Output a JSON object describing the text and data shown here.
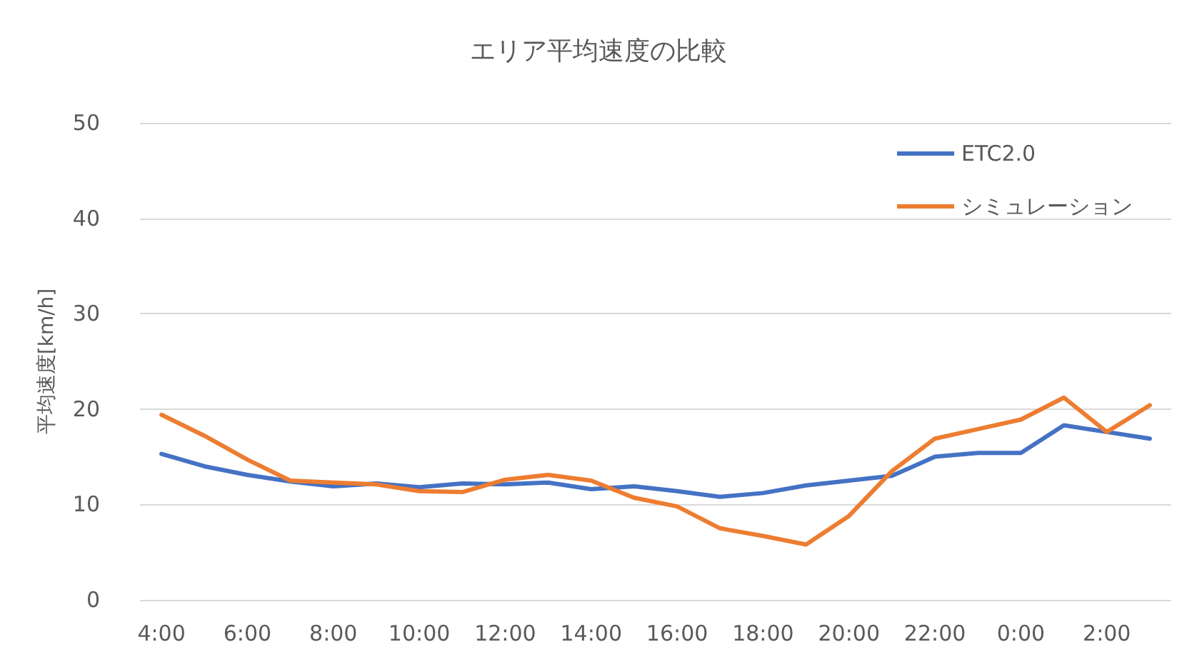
{
  "chart_data": {
    "type": "line",
    "title": "エリア平均速度の比較",
    "ylabel": "平均速度[km/h]",
    "categories": [
      "4:00",
      null,
      "6:00",
      null,
      "8:00",
      null,
      "10:00",
      null,
      "12:00",
      null,
      "14:00",
      null,
      "16:00",
      null,
      "18:00",
      null,
      "20:00",
      null,
      "22:00",
      null,
      "0:00",
      null,
      "2:00",
      null
    ],
    "series": [
      {
        "name": "ETC2.0",
        "color": "#4472c4",
        "values": [
          15.3,
          14,
          13.1,
          12.4,
          11.9,
          12.2,
          11.8,
          12.2,
          12.1,
          12.3,
          11.6,
          11.9,
          11.4,
          10.8,
          11.2,
          12,
          12.5,
          13,
          15,
          15.4,
          15.4,
          18.3,
          17.6,
          16.9
        ]
      },
      {
        "name": "シミュレーション",
        "color": "#ed7d31",
        "values": [
          19.4,
          17.2,
          14.7,
          12.5,
          12.3,
          12.1,
          11.4,
          11.3,
          12.6,
          13.1,
          12.5,
          10.7,
          9.8,
          7.5,
          6.7,
          5.8,
          8.8,
          13.5,
          16.9,
          17.9,
          18.9,
          21.2,
          17.6,
          20.4
        ]
      }
    ],
    "ylim": [
      0,
      50
    ],
    "yticks": [
      0,
      10,
      20,
      30,
      40,
      50
    ],
    "grid": "y",
    "legend": "top right",
    "marker": "none",
    "line_style": "solid"
  }
}
